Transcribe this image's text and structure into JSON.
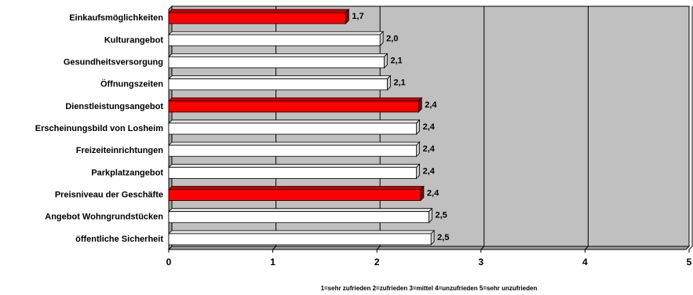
{
  "chart_data": {
    "type": "bar",
    "orientation": "horizontal",
    "categories": [
      "Einkaufsmöglichkeiten",
      "Kulturangebot",
      "Gesundheitsversorgung",
      "Öffnungszeiten",
      "Dienstleistungsangebot",
      "Erscheinungsbild von Losheim",
      "Freizeiteinrichtungen",
      "Parkplatzangebot",
      "Preisniveau der Geschäfte",
      "Angebot Wohngrundstücken",
      "öffentliche Sicherheit"
    ],
    "values": [
      1.7,
      2.03,
      2.07,
      2.1,
      2.4,
      2.38,
      2.38,
      2.38,
      2.42,
      2.5,
      2.52
    ],
    "value_labels": [
      "1,7",
      "2,0",
      "2,1",
      "2,1",
      "2,4",
      "2,4",
      "2,4",
      "2,4",
      "2,4",
      "2,5",
      "2,5"
    ],
    "highlighted": [
      true,
      false,
      false,
      false,
      true,
      false,
      false,
      false,
      true,
      false,
      false
    ],
    "xlim": [
      0,
      5
    ],
    "x_ticks": [
      "0",
      "1",
      "2",
      "3",
      "4",
      "5"
    ],
    "xlabel": "1=sehr zufrieden 2=zufrieden 3=mittel 4=unzufrieden 5=sehr unzufrieden",
    "title": "",
    "ylabel": "",
    "colors": {
      "highlight_bar": "#ff0000",
      "normal_bar": "#ffffff",
      "plot_background": "#c0c0c0",
      "gridline": "#000000"
    },
    "grid": true,
    "legend": "none"
  }
}
